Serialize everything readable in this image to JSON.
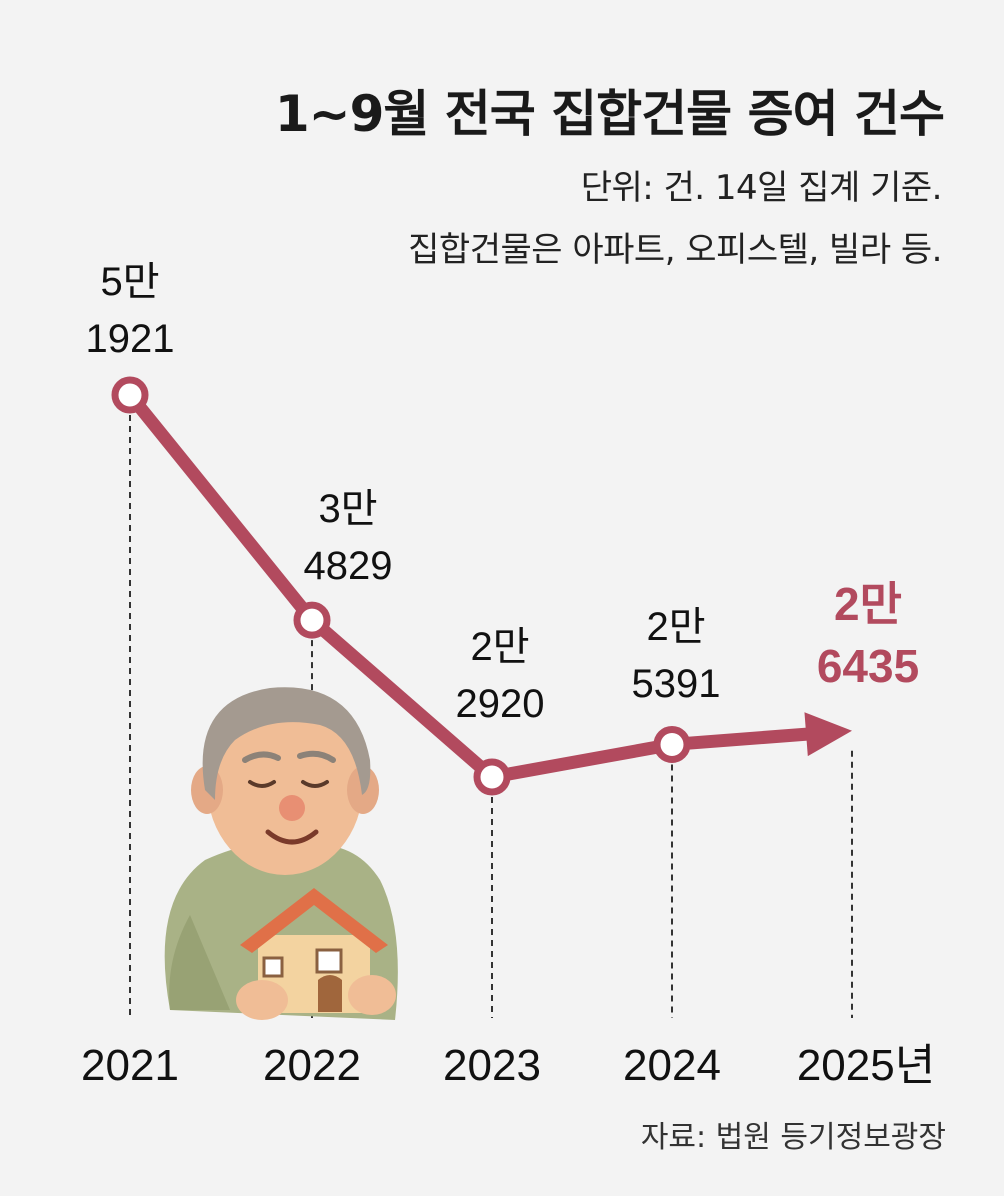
{
  "header": {
    "title": "1~9월 전국 집합건물 증여 건수",
    "subtitle_line1": "단위: 건. 14일 집계 기준.",
    "subtitle_line2": "집합건물은 아파트, 오피스텔, 빌라 등."
  },
  "source": "자료: 법원 등기정보광장",
  "colors": {
    "line": "#b24a5e",
    "highlight": "#b24a5e",
    "background": "#f3f3f3"
  },
  "illustration": {
    "icon": "elderly-man-holding-house-icon"
  },
  "chart_data": {
    "type": "line",
    "categories": [
      "2021",
      "2022",
      "2023",
      "2024",
      "2025년"
    ],
    "values": [
      51921,
      34829,
      22920,
      25391,
      26435
    ],
    "value_labels": [
      [
        "5만",
        "1921"
      ],
      [
        "3만",
        "4829"
      ],
      [
        "2만",
        "2920"
      ],
      [
        "2만",
        "5391"
      ],
      [
        "2만",
        "6435"
      ]
    ],
    "highlight_index": 4,
    "ylim": [
      19000,
      53500
    ],
    "grid": false,
    "legend": "none",
    "last_point_marker": "arrow"
  }
}
